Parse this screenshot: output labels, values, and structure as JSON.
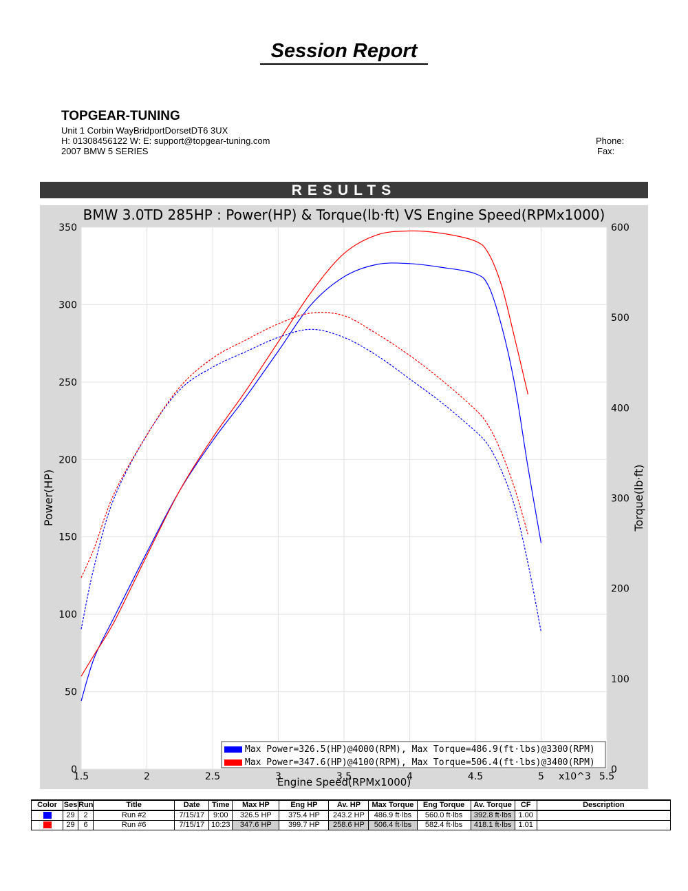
{
  "report": {
    "title": "Session Report",
    "company": "TOPGEAR-TUNING",
    "address": "Unit 1 Corbin WayBridportDorsetDT6 3UX",
    "contact": "H:  01308456122    W:      E:  support@topgear-tuning.com",
    "vehicle": "2007 BMW 5 SERIES",
    "phone_label": "Phone:",
    "fax_label": "Fax:",
    "results_label": "RESULTS"
  },
  "chart_data": {
    "type": "line",
    "title": "BMW 3.0TD 285HP : Power(HP) & Torque(lb·ft) VS Engine Speed(RPMx1000)",
    "xlabel": "Engine Speed(RPMx1000)",
    "ylabel": "Power(HP)",
    "y2label": "Torque(lb·ft)",
    "x_multiplier_label": "x10^3",
    "xlim": [
      1.5,
      5.5
    ],
    "ylim": [
      0,
      350
    ],
    "y2lim": [
      0,
      600
    ],
    "x_ticks": [
      "1.5",
      "2",
      "2.5",
      "3",
      "3.5",
      "4",
      "4.5",
      "5",
      "5.5"
    ],
    "y_ticks": [
      "0",
      "50",
      "100",
      "150",
      "200",
      "250",
      "300",
      "350"
    ],
    "y2_ticks": [
      "0",
      "100",
      "200",
      "300",
      "400",
      "500",
      "600"
    ],
    "grid": true,
    "legend_position": "bottom-right",
    "legend": [
      {
        "color": "#0000ff",
        "text": "Max Power=326.5(HP)@4000(RPM), Max Torque=486.9(ft·lbs)@3300(RPM)"
      },
      {
        "color": "#ff0000",
        "text": "Max Power=347.6(HP)@4100(RPM), Max Torque=506.4(ft·lbs)@3400(RPM)"
      }
    ],
    "series": [
      {
        "color": "#0000ff",
        "style": "solid",
        "axis": "left",
        "x": [
          1.5,
          1.6,
          1.75,
          2.0,
          2.25,
          2.5,
          2.75,
          3.0,
          3.25,
          3.5,
          3.75,
          4.0,
          4.25,
          4.5,
          4.6,
          4.7,
          4.8,
          4.9,
          5.0
        ],
        "y": [
          44,
          72,
          98,
          140,
          180,
          212,
          240,
          270,
          300,
          318,
          326,
          326.5,
          324,
          320,
          312,
          286,
          248,
          195,
          146
        ]
      },
      {
        "color": "#ff0000",
        "style": "solid",
        "axis": "left",
        "x": [
          1.5,
          1.6,
          1.75,
          2.0,
          2.25,
          2.5,
          2.75,
          3.0,
          3.25,
          3.5,
          3.75,
          4.0,
          4.25,
          4.5,
          4.6,
          4.7,
          4.8,
          4.9
        ],
        "y": [
          60,
          74,
          95,
          138,
          180,
          214,
          244,
          276,
          308,
          333,
          345,
          347.6,
          346,
          341,
          333,
          312,
          278,
          242
        ]
      },
      {
        "color": "#0000ff",
        "style": "dashed",
        "axis": "right",
        "x": [
          1.5,
          1.6,
          1.75,
          2.0,
          2.25,
          2.5,
          2.75,
          3.0,
          3.25,
          3.5,
          3.75,
          4.0,
          4.25,
          4.5,
          4.6,
          4.7,
          4.8,
          4.9,
          5.0
        ],
        "y": [
          155,
          225,
          300,
          370,
          420,
          445,
          462,
          478,
          486.9,
          478,
          458,
          432,
          405,
          374,
          358,
          330,
          290,
          228,
          152
        ]
      },
      {
        "color": "#ff0000",
        "style": "dashed",
        "axis": "right",
        "x": [
          1.5,
          1.6,
          1.75,
          2.0,
          2.25,
          2.5,
          2.75,
          3.0,
          3.25,
          3.5,
          3.75,
          4.0,
          4.25,
          4.5,
          4.6,
          4.7,
          4.8,
          4.9
        ],
        "y": [
          212,
          245,
          305,
          370,
          423,
          455,
          475,
          493,
          505,
          502,
          482,
          458,
          430,
          398,
          380,
          350,
          310,
          260
        ]
      }
    ]
  },
  "table": {
    "headers": [
      "Color",
      "Ses",
      "Run",
      "Title",
      "Date",
      "Time",
      "Max HP",
      "Eng HP",
      "Av. HP",
      "Max Torque",
      "Eng Torque",
      "Av. Torque",
      "CF",
      "Description"
    ],
    "rows": [
      {
        "color": "#0000ff",
        "cells": [
          "29",
          "2",
          "Run #2",
          "7/15/17",
          "9:00",
          "326.5 HP",
          "375.4 HP",
          "243.2 HP",
          "486.9 ft·lbs",
          "560.0 ft·lbs",
          "392.8 ft·lbs",
          "1.00",
          ""
        ]
      },
      {
        "color": "#ff0000",
        "cells": [
          "29",
          "6",
          "Run #6",
          "7/15/17",
          "10:23",
          "347.6 HP",
          "399.7 HP",
          "258.6 HP",
          "506.4 ft·lbs",
          "582.4 ft·lbs",
          "418.1 ft·lbs",
          "1.01",
          ""
        ]
      }
    ]
  }
}
